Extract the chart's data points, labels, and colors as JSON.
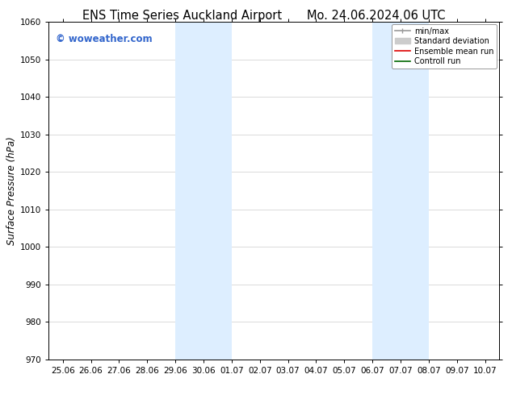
{
  "title_left": "ENS Time Series Auckland Airport",
  "title_right": "Mo. 24.06.2024 06 UTC",
  "ylabel": "Surface Pressure (hPa)",
  "ylim": [
    970,
    1060
  ],
  "yticks": [
    970,
    980,
    990,
    1000,
    1010,
    1020,
    1030,
    1040,
    1050,
    1060
  ],
  "xtick_labels": [
    "25.06",
    "26.06",
    "27.06",
    "28.06",
    "29.06",
    "30.06",
    "01.07",
    "02.07",
    "03.07",
    "04.07",
    "05.07",
    "06.07",
    "07.07",
    "08.07",
    "09.07",
    "10.07"
  ],
  "xtick_positions": [
    0,
    1,
    2,
    3,
    4,
    5,
    6,
    7,
    8,
    9,
    10,
    11,
    12,
    13,
    14,
    15
  ],
  "shaded_regions": [
    {
      "xmin": 4,
      "xmax": 6,
      "color": "#ddeeff"
    },
    {
      "xmin": 11,
      "xmax": 13,
      "color": "#ddeeff"
    }
  ],
  "watermark_text": "© woweather.com",
  "watermark_color": "#3366cc",
  "legend_items": [
    {
      "label": "min/max",
      "color": "#999999",
      "lw": 1.2,
      "style": "line_with_caps"
    },
    {
      "label": "Standard deviation",
      "color": "#cccccc",
      "lw": 5,
      "style": "thick"
    },
    {
      "label": "Ensemble mean run",
      "color": "#dd0000",
      "lw": 1.2,
      "style": "line"
    },
    {
      "label": "Controll run",
      "color": "#006600",
      "lw": 1.2,
      "style": "line"
    }
  ],
  "bg_color": "#ffffff",
  "grid_color": "#cccccc",
  "title_fontsize": 10.5,
  "tick_fontsize": 7.5,
  "ylabel_fontsize": 8.5,
  "watermark_fontsize": 8.5
}
